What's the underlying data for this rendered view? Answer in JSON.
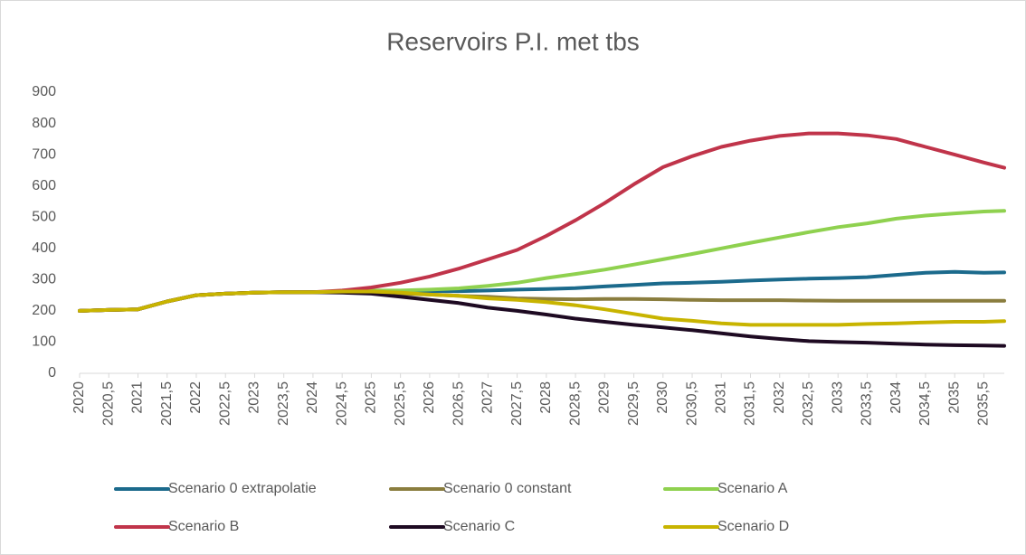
{
  "chart_data": {
    "type": "line",
    "title": "Reservoirs P.I. met tbs",
    "x": [
      2020,
      2020.5,
      2021,
      2021.5,
      2022,
      2022.5,
      2023,
      2023.5,
      2024,
      2024.5,
      2025,
      2025.5,
      2026,
      2026.5,
      2027,
      2027.5,
      2028,
      2028.5,
      2029,
      2029.5,
      2030,
      2030.5,
      2031,
      2031.5,
      2032,
      2032.5,
      2033,
      2033.5,
      2034,
      2034.5,
      2035,
      2035.5,
      2035.85
    ],
    "series": [
      {
        "name": "Scenario 0 extrapolatie",
        "color": "#1b6a8c",
        "values": [
          200,
          203,
          205,
          230,
          250,
          255,
          258,
          260,
          260,
          262,
          262,
          262,
          263,
          263,
          265,
          268,
          270,
          273,
          278,
          283,
          288,
          290,
          293,
          297,
          300,
          303,
          305,
          308,
          315,
          322,
          325,
          322,
          323
        ]
      },
      {
        "name": "Scenario 0 constant",
        "color": "#8a7d3e",
        "values": [
          200,
          203,
          205,
          230,
          250,
          255,
          258,
          260,
          260,
          262,
          260,
          255,
          252,
          248,
          245,
          240,
          238,
          237,
          238,
          238,
          237,
          235,
          234,
          234,
          234,
          233,
          232,
          232,
          232,
          232,
          232,
          232,
          232
        ]
      },
      {
        "name": "Scenario A",
        "color": "#8fd14f",
        "values": [
          200,
          203,
          205,
          230,
          250,
          255,
          258,
          260,
          260,
          262,
          265,
          265,
          268,
          272,
          280,
          290,
          305,
          318,
          332,
          348,
          365,
          382,
          400,
          418,
          435,
          452,
          468,
          480,
          495,
          505,
          512,
          518,
          520
        ]
      },
      {
        "name": "Scenario B",
        "color": "#c0344a",
        "values": [
          200,
          203,
          205,
          230,
          250,
          255,
          258,
          260,
          260,
          265,
          275,
          290,
          310,
          335,
          365,
          395,
          440,
          490,
          545,
          605,
          660,
          695,
          725,
          745,
          760,
          768,
          768,
          762,
          750,
          725,
          700,
          675,
          658
        ]
      },
      {
        "name": "Scenario C",
        "color": "#1e0a22",
        "values": [
          200,
          203,
          205,
          230,
          250,
          255,
          258,
          260,
          260,
          258,
          255,
          245,
          235,
          225,
          210,
          200,
          188,
          175,
          165,
          155,
          147,
          138,
          128,
          118,
          110,
          103,
          100,
          98,
          95,
          92,
          90,
          89,
          88
        ]
      },
      {
        "name": "Scenario D",
        "color": "#c8b400",
        "values": [
          200,
          203,
          205,
          230,
          250,
          255,
          258,
          260,
          260,
          262,
          262,
          258,
          252,
          248,
          240,
          235,
          228,
          218,
          205,
          190,
          175,
          168,
          160,
          155,
          155,
          155,
          155,
          158,
          160,
          163,
          165,
          165,
          167
        ]
      }
    ],
    "xlim": [
      2020,
      2035.85
    ],
    "xticks": [
      2020,
      {
        "value": 2020.5,
        "label": "2020,5"
      },
      2021,
      {
        "value": 2021.5,
        "label": "2021,5"
      },
      2022,
      {
        "value": 2022.5,
        "label": "2022,5"
      },
      2023,
      {
        "value": 2023.5,
        "label": "2023,5"
      },
      2024,
      {
        "value": 2024.5,
        "label": "2024,5"
      },
      2025,
      {
        "value": 2025.5,
        "label": "2025,5"
      },
      2026,
      {
        "value": 2026.5,
        "label": "2026,5"
      },
      2027,
      {
        "value": 2027.5,
        "label": "2027,5"
      },
      2028,
      {
        "value": 2028.5,
        "label": "2028,5"
      },
      2029,
      {
        "value": 2029.5,
        "label": "2029,5"
      },
      2030,
      {
        "value": 2030.5,
        "label": "2030,5"
      },
      2031,
      {
        "value": 2031.5,
        "label": "2031,5"
      },
      2032,
      {
        "value": 2032.5,
        "label": "2032,5"
      },
      2033,
      {
        "value": 2033.5,
        "label": "2033,5"
      },
      2034,
      {
        "value": 2034.5,
        "label": "2034,5"
      },
      2035,
      {
        "value": 2035.5,
        "label": "2035,5"
      }
    ],
    "ylim": [
      0,
      900
    ],
    "yticks": [
      0,
      100,
      200,
      300,
      400,
      500,
      600,
      700,
      800,
      900
    ],
    "grid": false,
    "legend": "bottom"
  }
}
